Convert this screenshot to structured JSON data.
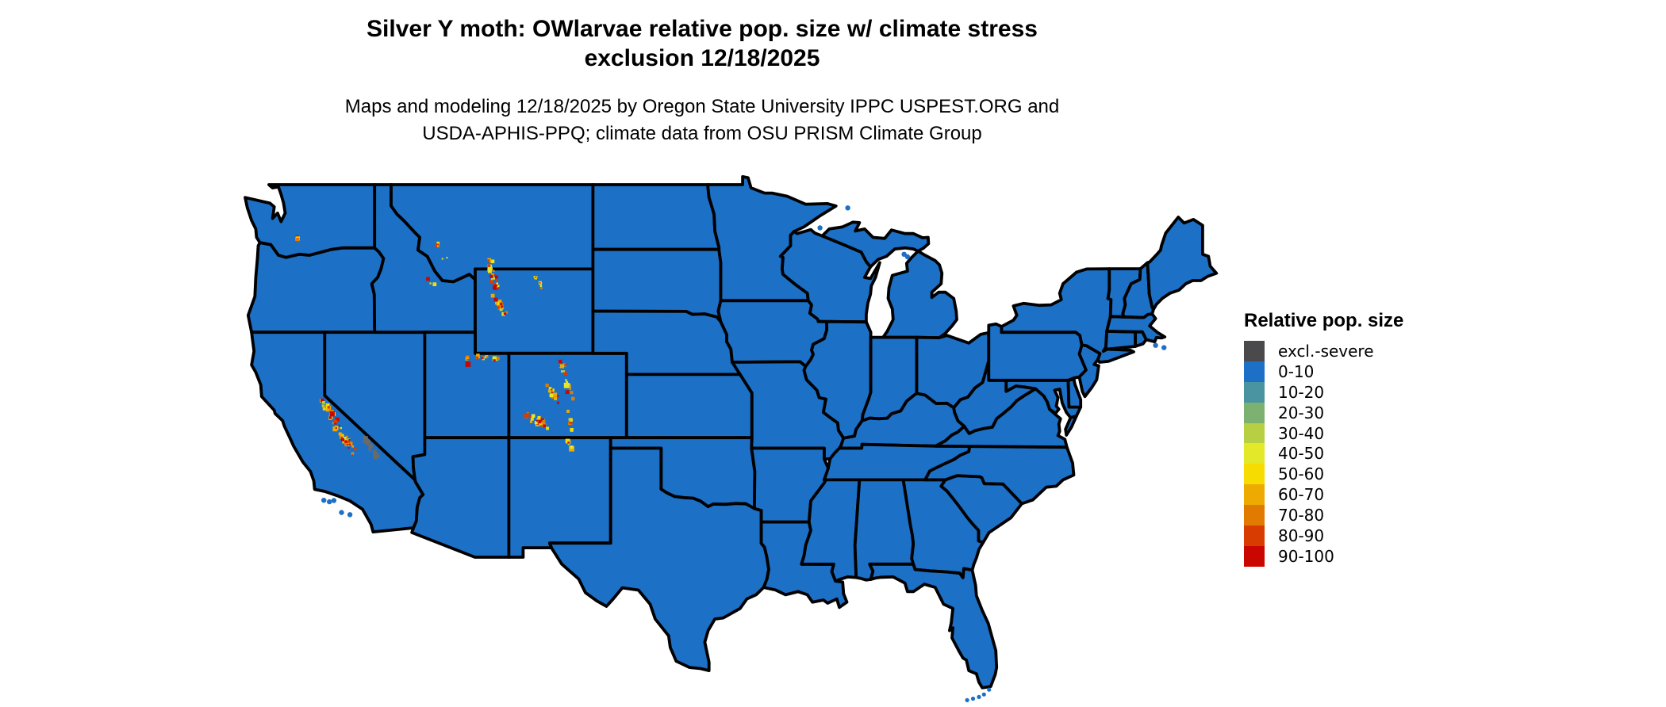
{
  "header": {
    "title_line1": "Silver Y moth: OWlarvae relative pop. size w/ climate stress",
    "title_line2": "exclusion 12/18/2025",
    "subtitle_line1": "Maps and modeling 12/18/2025 by Oregon State University IPPC USPEST.ORG and",
    "subtitle_line2": "USDA-APHIS-PPQ; climate data from OSU PRISM Climate Group"
  },
  "legend": {
    "title": "Relative pop. size",
    "items": [
      {
        "label": "excl.-severe",
        "color": "#4a4a4d"
      },
      {
        "label": "0-10",
        "color": "#1c70c6"
      },
      {
        "label": "10-20",
        "color": "#4a93a0"
      },
      {
        "label": "20-30",
        "color": "#7cb171"
      },
      {
        "label": "30-40",
        "color": "#b6cf43"
      },
      {
        "label": "40-50",
        "color": "#e3e829"
      },
      {
        "label": "50-60",
        "color": "#f6dc00"
      },
      {
        "label": "60-70",
        "color": "#eeaa00"
      },
      {
        "label": "70-80",
        "color": "#e27a00"
      },
      {
        "label": "80-90",
        "color": "#d83c00"
      },
      {
        "label": "90-100",
        "color": "#c90600"
      }
    ]
  },
  "map": {
    "land_fill": "#1c70c6",
    "border_color": "#000000",
    "background": "#ffffff",
    "exclusion_gray": "#6a6a6a",
    "hotspot_colors": {
      "gold": "#f6dc00",
      "yellow": "#e3e829",
      "yellow_green": "#b6cf43",
      "orange": "#eeaa00",
      "dark_orange": "#e27a00",
      "red_orange": "#d83c00",
      "red": "#c90600"
    },
    "hotspots": [
      {
        "name": "sierra-nevada",
        "from": [
          -120.25,
          38.85
        ],
        "to": [
          -118.35,
          36.35
        ],
        "count": 55,
        "spread": 0.22,
        "palette": "warm"
      },
      {
        "name": "death-valley-exclusion",
        "from": [
          -117.6,
          36.95
        ],
        "to": [
          -116.75,
          35.95
        ],
        "count": 30,
        "spread": 0.16,
        "palette": "gray"
      },
      {
        "name": "washington-cascades",
        "from": [
          -121.85,
          46.9
        ],
        "to": [
          -121.5,
          46.15
        ],
        "count": 4,
        "spread": 0.06,
        "palette": "warm"
      },
      {
        "name": "absaroka-beartooth",
        "from": [
          -110.2,
          45.4
        ],
        "to": [
          -109.75,
          43.9
        ],
        "count": 26,
        "spread": 0.18,
        "palette": "warm"
      },
      {
        "name": "wind-river-range",
        "from": [
          -109.95,
          43.65
        ],
        "to": [
          -109.15,
          42.75
        ],
        "count": 16,
        "spread": 0.14,
        "palette": "warm"
      },
      {
        "name": "bighorn-mountains",
        "from": [
          -107.5,
          44.7
        ],
        "to": [
          -107.05,
          44.05
        ],
        "count": 7,
        "spread": 0.1,
        "palette": "warm"
      },
      {
        "name": "uinta-mountains",
        "from": [
          -110.95,
          40.85
        ],
        "to": [
          -109.65,
          40.7
        ],
        "count": 13,
        "spread": 0.1,
        "palette": "warm"
      },
      {
        "name": "wasatch-range",
        "from": [
          -111.6,
          40.9
        ],
        "to": [
          -111.4,
          40.35
        ],
        "count": 4,
        "spread": 0.07,
        "palette": "warm"
      },
      {
        "name": "colorado-front-range",
        "from": [
          -105.9,
          40.6
        ],
        "to": [
          -105.3,
          38.85
        ],
        "count": 20,
        "spread": 0.16,
        "palette": "warm"
      },
      {
        "name": "sawatch-elk-ranges",
        "from": [
          -106.7,
          39.5
        ],
        "to": [
          -106.1,
          38.55
        ],
        "count": 16,
        "spread": 0.2,
        "palette": "warm"
      },
      {
        "name": "san-juan-mountains",
        "from": [
          -107.95,
          38.15
        ],
        "to": [
          -106.85,
          37.45
        ],
        "count": 24,
        "spread": 0.25,
        "palette": "warm"
      },
      {
        "name": "sangre-de-cristo",
        "from": [
          -105.6,
          38.2
        ],
        "to": [
          -105.25,
          37.3
        ],
        "count": 9,
        "spread": 0.1,
        "palette": "warm"
      },
      {
        "name": "sangre-de-cristo-nm",
        "from": [
          -105.5,
          36.9
        ],
        "to": [
          -105.3,
          36.35
        ],
        "count": 5,
        "spread": 0.08,
        "palette": "warm"
      },
      {
        "name": "montana-rockies",
        "from": [
          -113.55,
          46.25
        ],
        "to": [
          -112.8,
          45.15
        ],
        "count": 5,
        "spread": 0.3,
        "palette": "warm"
      },
      {
        "name": "beaverhead-specks",
        "from": [
          -113.9,
          44.6
        ],
        "to": [
          -113.55,
          44.25
        ],
        "count": 3,
        "spread": 0.12,
        "palette": "warm"
      }
    ]
  }
}
